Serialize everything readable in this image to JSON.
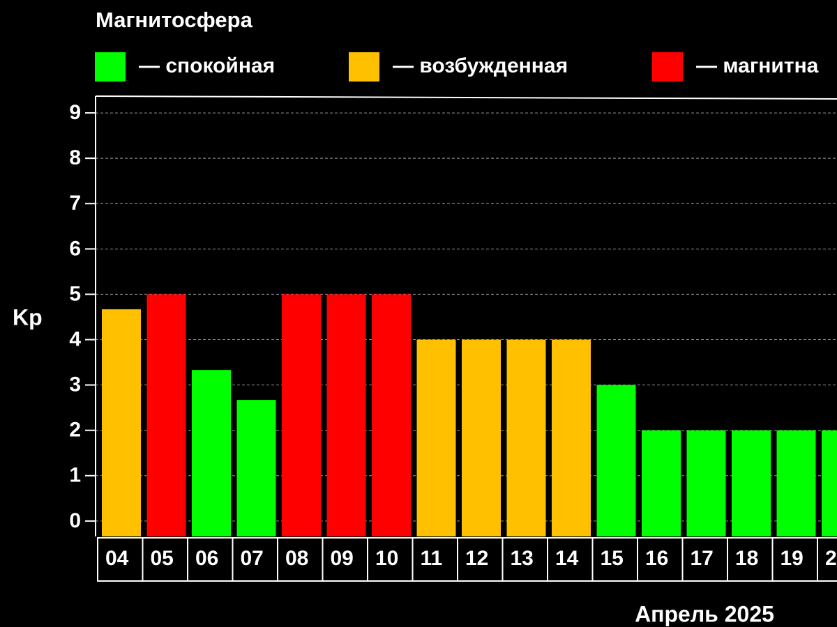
{
  "chart_data": {
    "type": "bar",
    "title": "Магнитосфера",
    "y_label": "Kp",
    "x_label": "Апрель 2025",
    "legend": [
      {
        "name": "— спокойная",
        "color": "#00ff00"
      },
      {
        "name": "— возбужденная",
        "color": "#ffc000"
      },
      {
        "name": "— магнитна",
        "color": "#ff0000"
      }
    ],
    "categories": [
      "04",
      "05",
      "06",
      "07",
      "08",
      "09",
      "10",
      "11",
      "12",
      "13",
      "14",
      "15",
      "16",
      "17",
      "18",
      "19",
      "2"
    ],
    "values": [
      4.67,
      5,
      3.33,
      2.67,
      5,
      5,
      5,
      4,
      4,
      4,
      4,
      3,
      2,
      2,
      2,
      2,
      2
    ],
    "colors": [
      "#ffc000",
      "#ff0000",
      "#00ff00",
      "#00ff00",
      "#ff0000",
      "#ff0000",
      "#ff0000",
      "#ffc000",
      "#ffc000",
      "#ffc000",
      "#ffc000",
      "#00ff00",
      "#00ff00",
      "#00ff00",
      "#00ff00",
      "#00ff00",
      "#00ff00"
    ],
    "ylim": [
      -0.34,
      9.37
    ],
    "yticks": [
      0,
      1,
      2,
      3,
      4,
      5,
      6,
      7,
      8,
      9
    ],
    "grid": true
  }
}
